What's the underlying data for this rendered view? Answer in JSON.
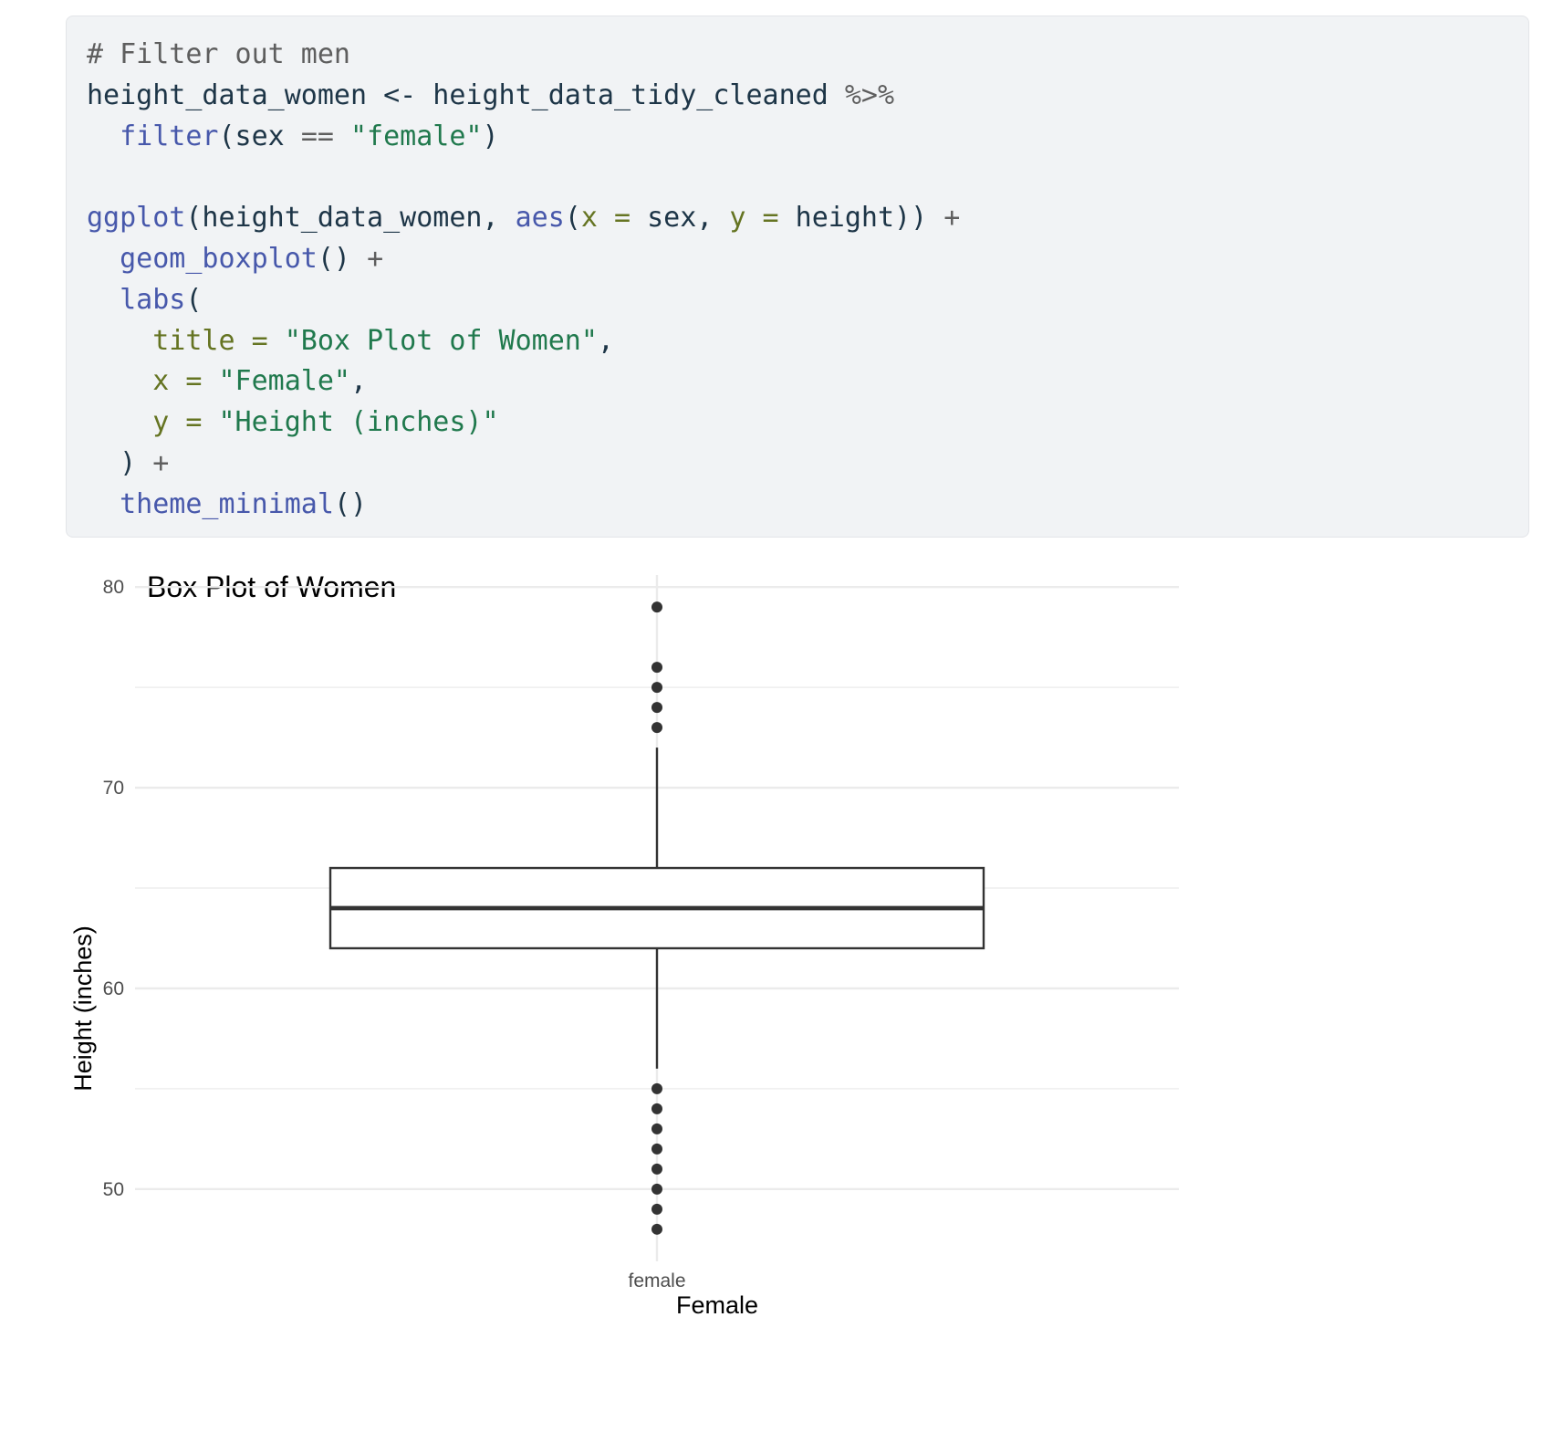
{
  "code": {
    "lines": [
      [
        {
          "t": "# Filter out men",
          "c": "comment"
        }
      ],
      [
        {
          "t": "height_data_women ",
          "c": "plain"
        },
        {
          "t": "<-",
          "c": "plain"
        },
        {
          "t": " height_data_tidy_cleaned ",
          "c": "plain"
        },
        {
          "t": "%>%",
          "c": "op"
        }
      ],
      [
        {
          "t": "  ",
          "c": "plain"
        },
        {
          "t": "filter",
          "c": "fn"
        },
        {
          "t": "(sex ",
          "c": "plain"
        },
        {
          "t": "==",
          "c": "op"
        },
        {
          "t": " ",
          "c": "plain"
        },
        {
          "t": "\"female\"",
          "c": "str"
        },
        {
          "t": ")",
          "c": "plain"
        }
      ],
      [
        {
          "t": "",
          "c": "plain"
        }
      ],
      [
        {
          "t": "ggplot",
          "c": "fn"
        },
        {
          "t": "(height_data_women, ",
          "c": "plain"
        },
        {
          "t": "aes",
          "c": "fn"
        },
        {
          "t": "(",
          "c": "plain"
        },
        {
          "t": "x =",
          "c": "arg"
        },
        {
          "t": " sex, ",
          "c": "plain"
        },
        {
          "t": "y =",
          "c": "arg"
        },
        {
          "t": " height)) ",
          "c": "plain"
        },
        {
          "t": "+",
          "c": "op"
        }
      ],
      [
        {
          "t": "  ",
          "c": "plain"
        },
        {
          "t": "geom_boxplot",
          "c": "fn"
        },
        {
          "t": "() ",
          "c": "plain"
        },
        {
          "t": "+",
          "c": "op"
        }
      ],
      [
        {
          "t": "  ",
          "c": "plain"
        },
        {
          "t": "labs",
          "c": "fn"
        },
        {
          "t": "(",
          "c": "plain"
        }
      ],
      [
        {
          "t": "    ",
          "c": "plain"
        },
        {
          "t": "title =",
          "c": "arg"
        },
        {
          "t": " ",
          "c": "plain"
        },
        {
          "t": "\"Box Plot of Women\"",
          "c": "str"
        },
        {
          "t": ",",
          "c": "plain"
        }
      ],
      [
        {
          "t": "    ",
          "c": "plain"
        },
        {
          "t": "x =",
          "c": "arg"
        },
        {
          "t": " ",
          "c": "plain"
        },
        {
          "t": "\"Female\"",
          "c": "str"
        },
        {
          "t": ",",
          "c": "plain"
        }
      ],
      [
        {
          "t": "    ",
          "c": "plain"
        },
        {
          "t": "y =",
          "c": "arg"
        },
        {
          "t": " ",
          "c": "plain"
        },
        {
          "t": "\"Height (inches)\"",
          "c": "str"
        }
      ],
      [
        {
          "t": "  ) ",
          "c": "plain"
        },
        {
          "t": "+",
          "c": "op"
        }
      ],
      [
        {
          "t": "  ",
          "c": "plain"
        },
        {
          "t": "theme_minimal",
          "c": "fn"
        },
        {
          "t": "()",
          "c": "plain"
        }
      ]
    ]
  },
  "chart_data": {
    "type": "boxplot",
    "title": "Box Plot of Women",
    "xlabel": "Female",
    "ylabel": "Height (inches)",
    "categories": [
      "female"
    ],
    "ylim": [
      46.4,
      80.6
    ],
    "yticks": [
      50,
      60,
      70,
      80
    ],
    "grid": true,
    "box": {
      "category": "female",
      "q1": 62,
      "median": 64,
      "q3": 66,
      "whisker_low": 56,
      "whisker_high": 72,
      "outliers": [
        79,
        76,
        75,
        74,
        73,
        55,
        54,
        53,
        52,
        51,
        50,
        49,
        48
      ]
    },
    "colors": {
      "box_stroke": "#333333",
      "grid": "#ebebeb",
      "point": "#333333",
      "tick_text": "#4d4d4d",
      "title_text": "#000000"
    }
  }
}
